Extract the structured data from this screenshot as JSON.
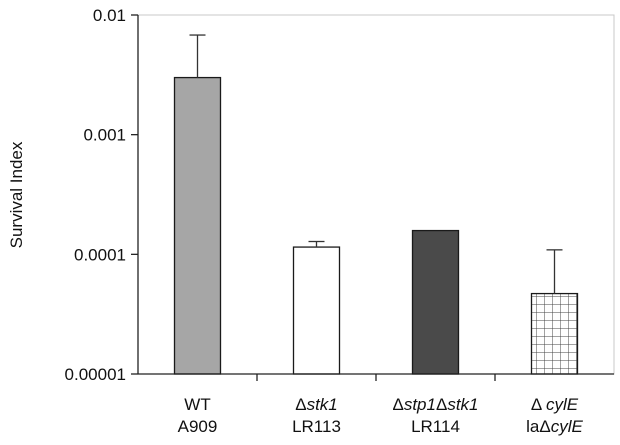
{
  "chart_data": {
    "type": "bar",
    "title": "",
    "xlabel": "",
    "ylabel": "Survival Index",
    "yscale": "log",
    "ylim": [
      1e-05,
      0.01
    ],
    "yticks": [
      {
        "value": 0.01,
        "label": "0.01"
      },
      {
        "value": 0.001,
        "label": "0.001"
      },
      {
        "value": 0.0001,
        "label": "0.0001"
      },
      {
        "value": 1e-05,
        "label": "0.00001"
      }
    ],
    "grid": false,
    "categories": [
      {
        "line1": [
          {
            "t": "WT",
            "i": false
          }
        ],
        "line2": "A909"
      },
      {
        "line1": [
          {
            "t": "Δ",
            "i": false
          },
          {
            "t": "stk1",
            "i": true
          }
        ],
        "line2": "LR113"
      },
      {
        "line1": [
          {
            "t": "Δ",
            "i": false
          },
          {
            "t": "stp1",
            "i": true
          },
          {
            "t": "Δ",
            "i": false
          },
          {
            "t": "stk1",
            "i": true
          }
        ],
        "line2": "LR114"
      },
      {
        "line1": [
          {
            "t": "Δ ",
            "i": false
          },
          {
            "t": "cylE",
            "i": true
          }
        ],
        "line2": [
          {
            "t": "laΔ",
            "i": false
          },
          {
            "t": "cylE",
            "i": true
          }
        ]
      }
    ],
    "values": [
      0.003,
      0.000115,
      0.000158,
      4.7e-05
    ],
    "error_upper": [
      0.0068,
      0.000128,
      null,
      0.000109
    ],
    "fills": [
      "#a6a6a6",
      "#ffffff",
      "#4a4a4a",
      "pattern-grid"
    ]
  }
}
